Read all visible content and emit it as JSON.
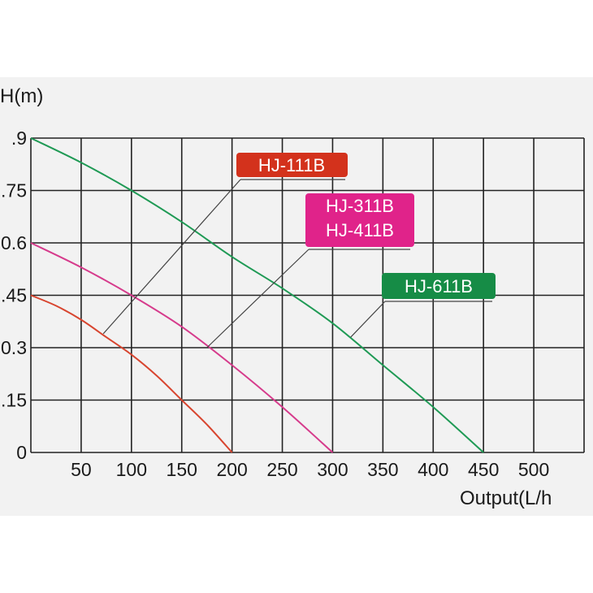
{
  "chart_data": {
    "type": "line",
    "ylabel": "H(m)",
    "xlabel": "Output(L/h",
    "xlim": [
      0,
      550
    ],
    "ylim": [
      0,
      0.9
    ],
    "x_ticks": [
      "50",
      "100",
      "150",
      "200",
      "250",
      "300",
      "350",
      "400",
      "450",
      "500"
    ],
    "x_tick_values": [
      50,
      100,
      150,
      200,
      250,
      300,
      350,
      400,
      450,
      500
    ],
    "y_ticks": [
      ".9",
      ".75",
      "0.6",
      ".45",
      "0.3",
      ".15",
      "0"
    ],
    "y_tick_values": [
      0.9,
      0.75,
      0.6,
      0.45,
      0.3,
      0.15,
      0
    ],
    "grid": true,
    "series": [
      {
        "name": "HJ-111B",
        "color": "#d8452f",
        "x": [
          0,
          25,
          50,
          75,
          100,
          125,
          150,
          175,
          200
        ],
        "y": [
          0.45,
          0.42,
          0.38,
          0.33,
          0.28,
          0.22,
          0.15,
          0.08,
          0
        ]
      },
      {
        "name": "HJ-311B / HJ-411B",
        "color": "#d63b8c",
        "x": [
          0,
          50,
          100,
          150,
          200,
          250,
          300
        ],
        "y": [
          0.6,
          0.53,
          0.45,
          0.36,
          0.25,
          0.13,
          0
        ]
      },
      {
        "name": "HJ-611B",
        "color": "#1f9a55",
        "x": [
          0,
          50,
          100,
          150,
          200,
          250,
          300,
          350,
          400,
          450
        ],
        "y": [
          0.9,
          0.83,
          0.75,
          0.66,
          0.56,
          0.47,
          0.37,
          0.25,
          0.13,
          0
        ]
      }
    ],
    "annotations": [
      {
        "lines": [
          "HJ-111B"
        ],
        "bg": "#d3321c",
        "pointer": [
          72,
          0.34
        ]
      },
      {
        "lines": [
          "HJ-311B",
          "HJ-411B"
        ],
        "bg": "#e0238a",
        "pointer": [
          175,
          0.3
        ]
      },
      {
        "lines": [
          "HJ-611B"
        ],
        "bg": "#168c46",
        "pointer": [
          318,
          0.33
        ]
      }
    ]
  }
}
